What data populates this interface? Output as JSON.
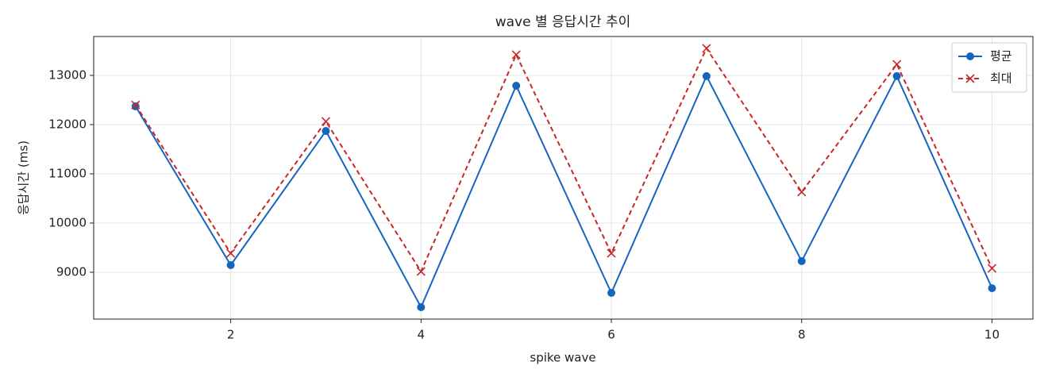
{
  "chart_data": {
    "type": "line",
    "title": "wave 별 응답시간 추이",
    "x_label": "spike wave",
    "y_label": "응답시간 (ms)",
    "x": [
      1,
      2,
      3,
      4,
      5,
      6,
      7,
      8,
      9,
      10
    ],
    "series": [
      {
        "name": "평균",
        "color": "#1565c0",
        "marker": "circle",
        "linestyle": "solid",
        "values": [
          12370,
          9145,
          11870,
          8290,
          12790,
          8580,
          12985,
          9225,
          12985,
          8675
        ]
      },
      {
        "name": "최대",
        "color": "#c62828",
        "marker": "x",
        "linestyle": "dashed",
        "values": [
          12400,
          9385,
          12065,
          9015,
          13420,
          9385,
          13550,
          10630,
          13225,
          9080
        ]
      }
    ],
    "xlim": [
      0.56,
      10.43
    ],
    "xticks": [
      2,
      4,
      6,
      8,
      10
    ],
    "ylim": [
      8048,
      13790
    ],
    "yticks": [
      9000,
      10000,
      11000,
      12000,
      13000
    ],
    "grid": true,
    "legend": "upper right"
  }
}
